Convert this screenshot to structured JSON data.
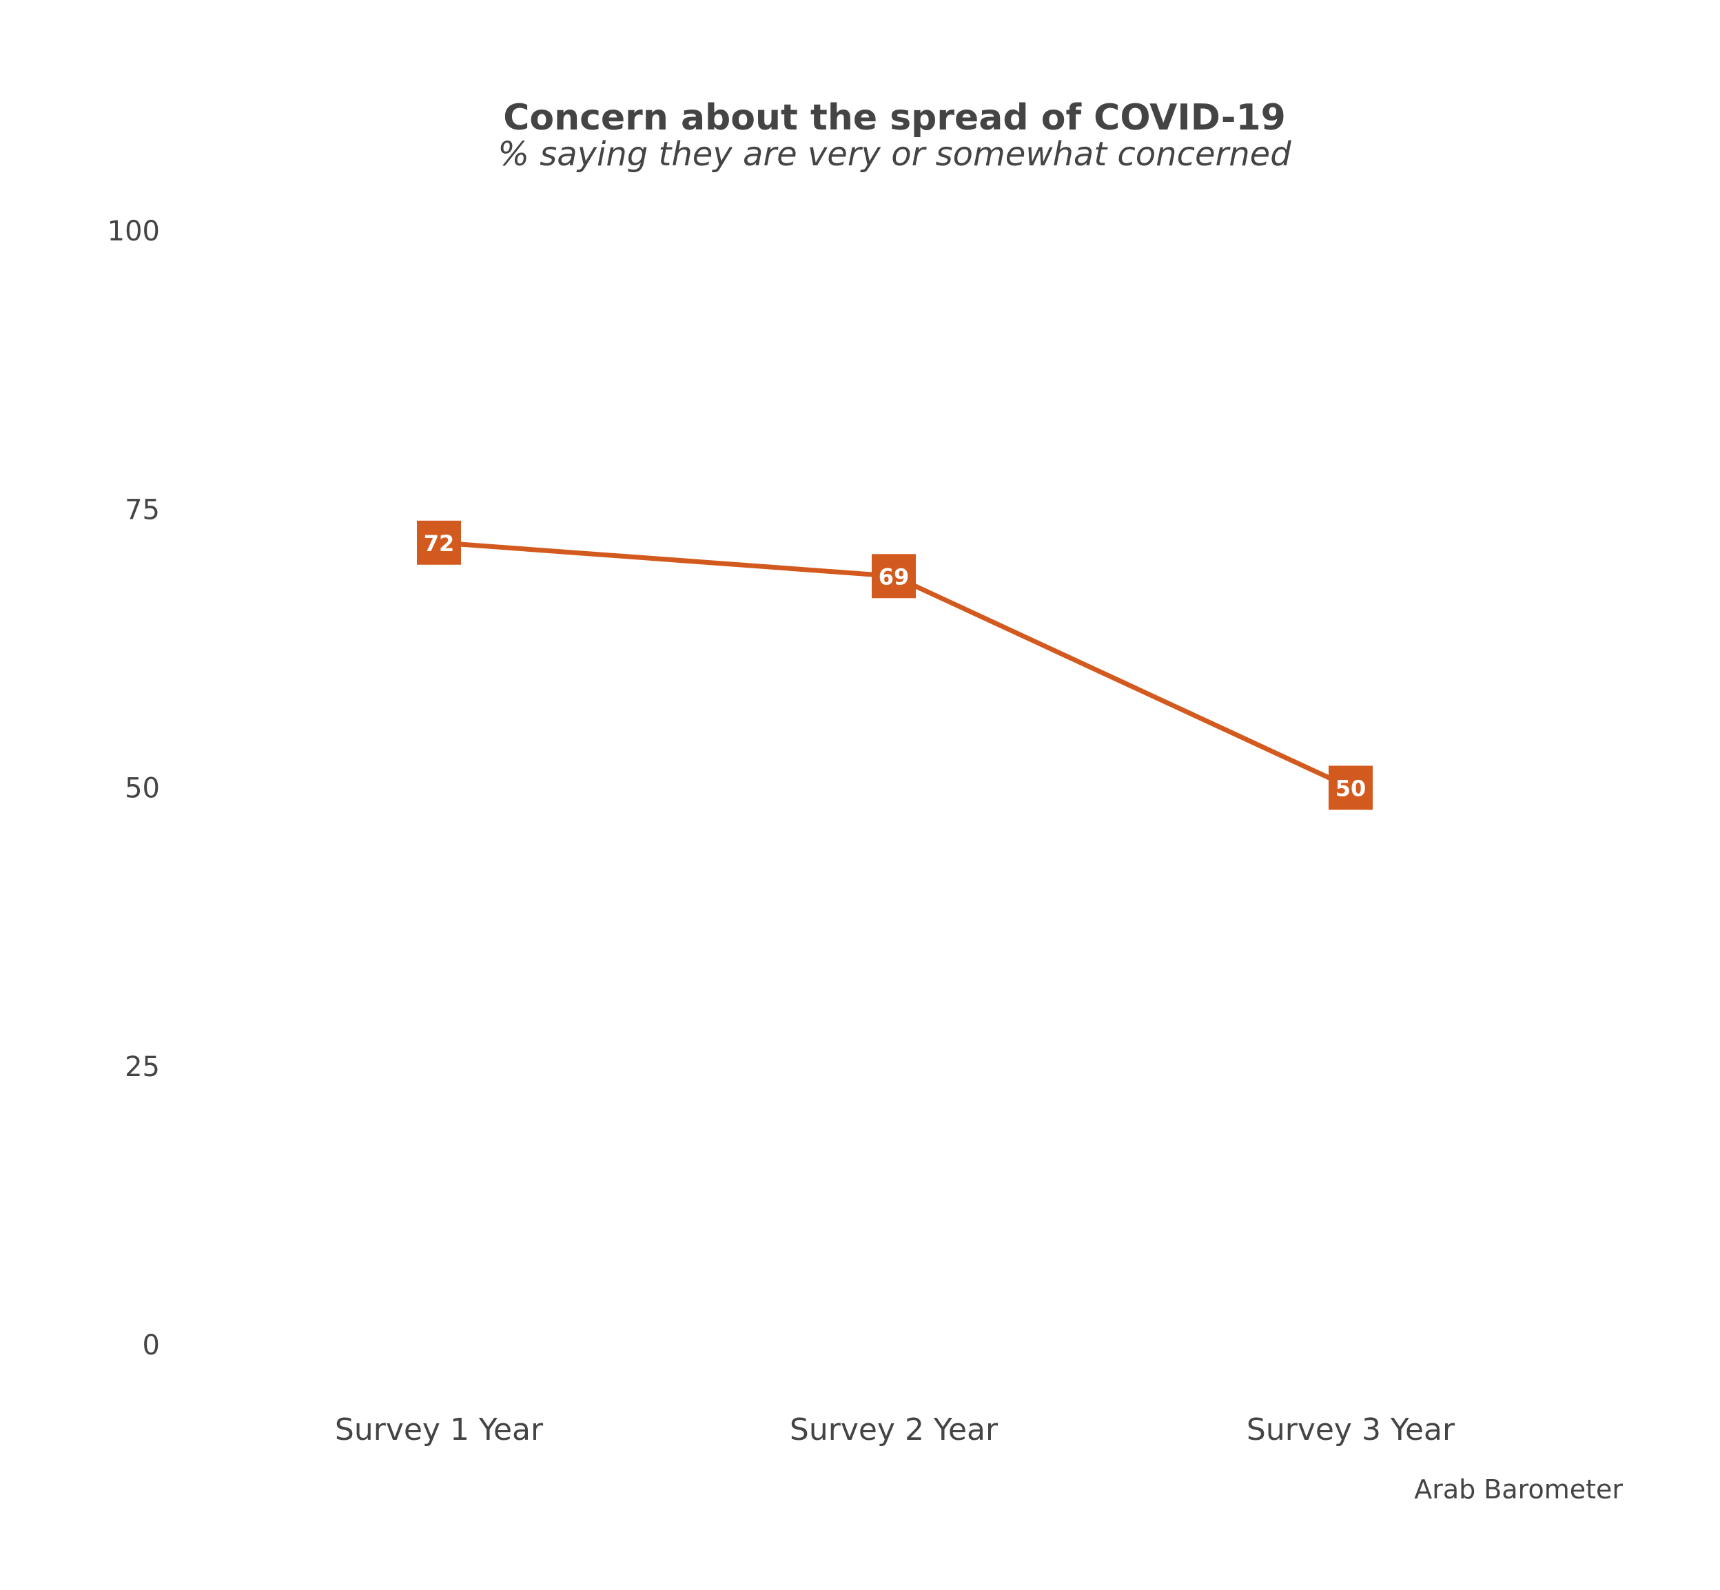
{
  "chart_data": {
    "type": "line",
    "title": "Concern about the spread of COVID-19",
    "subtitle": "% saying they are very or somewhat concerned",
    "xlabel": "",
    "ylabel": "",
    "categories": [
      "Survey 1 Year",
      "Survey 2 Year",
      "Survey 3 Year"
    ],
    "series": [
      {
        "values": [
          72,
          69,
          50
        ],
        "color": "#d35a1e"
      }
    ],
    "ylim": [
      0,
      100
    ],
    "yticks": [
      "0",
      "25",
      "50",
      "75",
      "100"
    ],
    "grid": false,
    "legend": "none",
    "data_labels": true,
    "caption": "Arab Barometer",
    "text_color": "#444444",
    "label_text_color": "#ffffff"
  }
}
